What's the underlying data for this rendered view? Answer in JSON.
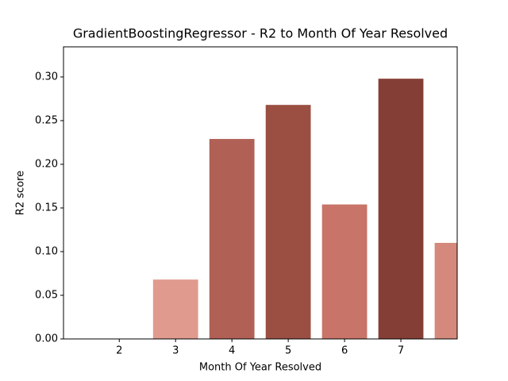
{
  "chart_data": {
    "type": "bar",
    "title": "GradientBoostingRegressor - R2 to Month Of Year Resolved",
    "x_label": "Month Of Year Resolved",
    "y_label": "R2 score",
    "x": [
      3,
      4,
      5,
      6,
      7,
      8
    ],
    "values": [
      0.068,
      0.229,
      0.268,
      0.154,
      0.298,
      0.11
    ],
    "colors": [
      "#e09a8e",
      "#b06055",
      "#9a4f42",
      "#c87468",
      "#843e35",
      "#d4897c"
    ],
    "xlim": [
      1.01,
      8.0
    ],
    "xticks": [
      2,
      3,
      4,
      5,
      6,
      7
    ],
    "ylim": [
      0,
      0.3345
    ],
    "yticks": [
      {
        "value": 0,
        "label": "0.00"
      },
      {
        "value": 0.05,
        "label": "0.05"
      },
      {
        "value": 0.1,
        "label": "0.10"
      },
      {
        "value": 0.15,
        "label": "0.15"
      },
      {
        "value": 0.2,
        "label": "0.20"
      },
      {
        "value": 0.25,
        "label": "0.25"
      },
      {
        "value": 0.3,
        "label": "0.30"
      }
    ]
  }
}
